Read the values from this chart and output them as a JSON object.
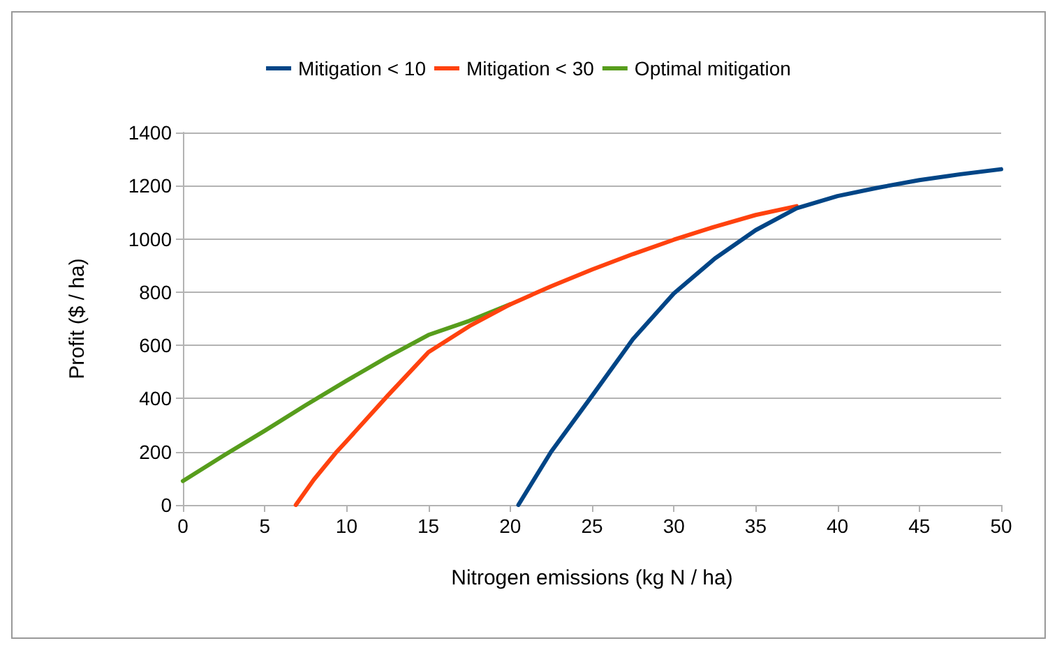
{
  "chart_data": {
    "type": "line",
    "xlabel": "Nitrogen emissions (kg N / ha)",
    "ylabel": "Profit ($ / ha)",
    "series": [
      {
        "name": "Mitigation < 10",
        "color": "#004586",
        "x": [
          20.5,
          22.5,
          25,
          27.5,
          30,
          32.5,
          35,
          37.5,
          40,
          42.5,
          45,
          47.5,
          50
        ],
        "values": [
          0,
          200,
          410,
          623,
          795,
          926,
          1033,
          1115,
          1161,
          1193,
          1221,
          1243,
          1262
        ]
      },
      {
        "name": "Mitigation < 30",
        "color": "#ff420e",
        "x": [
          6.9,
          8,
          9.4,
          10,
          12.5,
          15,
          17.5,
          20,
          22.5,
          25,
          27.5,
          30,
          32.5,
          35,
          37.5
        ],
        "values": [
          0,
          95,
          200,
          240,
          410,
          574,
          672,
          754,
          822,
          885,
          943,
          997,
          1046,
          1090,
          1123
        ]
      },
      {
        "name": "Optimal mitigation",
        "color": "#579d1c",
        "x": [
          0,
          2.5,
          5,
          7.5,
          10,
          12.5,
          15,
          17.5,
          20
        ],
        "values": [
          90,
          186,
          279,
          375,
          467,
          556,
          639,
          692,
          754
        ]
      }
    ],
    "xlim": [
      0,
      50
    ],
    "xticks": [
      0,
      5,
      10,
      15,
      20,
      25,
      30,
      35,
      40,
      45,
      50
    ],
    "ylim": [
      0,
      1400
    ],
    "yticks": [
      0,
      200,
      400,
      600,
      800,
      1000,
      1200,
      1400
    ],
    "grid": "y",
    "legend": "top",
    "marker": "none",
    "line_style": "solid"
  }
}
